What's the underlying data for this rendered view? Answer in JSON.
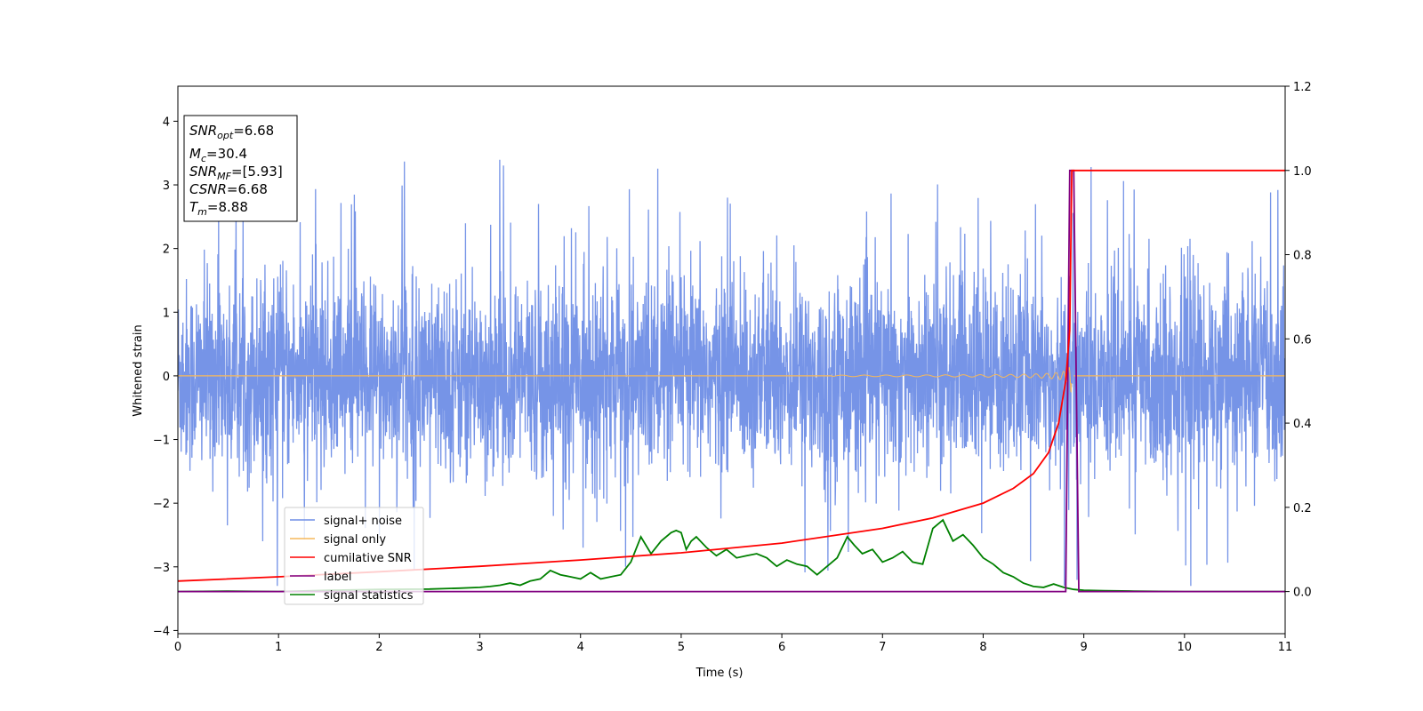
{
  "chart_data": {
    "type": "line",
    "xlabel": "Time (s)",
    "ylabel": "Whitened strain",
    "xlim": [
      0,
      11
    ],
    "ylim_left": [
      -4.05,
      4.55
    ],
    "ylim_right": [
      -0.1,
      1.2
    ],
    "x_ticks": [
      "0",
      "1",
      "2",
      "3",
      "4",
      "5",
      "6",
      "7",
      "8",
      "9",
      "10",
      "11"
    ],
    "y_left_ticks": [
      "−4",
      "−3",
      "−2",
      "−1",
      "0",
      "1",
      "2",
      "3",
      "4"
    ],
    "y_right_ticks": [
      "0.0",
      "0.2",
      "0.4",
      "0.6",
      "0.8",
      "1.0",
      "1.2"
    ],
    "grid": false,
    "legend_position": "lower-left",
    "info_box": {
      "snr_opt": {
        "sym": "SNR",
        "sub": "opt",
        "value": "=6.68"
      },
      "mc": {
        "sym": "M",
        "sub": "c",
        "value": "=30.4"
      },
      "snr_mf": {
        "sym": "SNR",
        "sub": "MF",
        "value": "=[5.93]"
      },
      "csnr": {
        "sym": "CSNR",
        "value": "=6.68"
      },
      "tm": {
        "sym": "T",
        "sub": "m",
        "value": "=8.88"
      }
    },
    "series": [
      {
        "name": "signal+ noise",
        "color": "#6f8ee6",
        "axis": "left",
        "description_amplitude": 1.1,
        "peak_max": 3.7,
        "peak_min": -3.3
      },
      {
        "name": "signal only",
        "color": "#f5b85c",
        "axis": "left",
        "merger_time": 8.88
      },
      {
        "name": "cumilative SNR",
        "color": "#ff0000",
        "axis": "right",
        "x": [
          0,
          1,
          2,
          3,
          4,
          5,
          6,
          7,
          7.5,
          8,
          8.3,
          8.5,
          8.65,
          8.75,
          8.82,
          8.86,
          8.88,
          8.9,
          11
        ],
        "y": [
          0.025,
          0.035,
          0.047,
          0.06,
          0.075,
          0.092,
          0.115,
          0.15,
          0.175,
          0.21,
          0.245,
          0.28,
          0.33,
          0.4,
          0.5,
          0.62,
          1.0,
          1.0,
          1.0
        ]
      },
      {
        "name": "label",
        "color": "#800080",
        "axis": "right",
        "x": [
          0,
          8.82,
          8.86,
          8.9,
          8.95,
          11
        ],
        "y": [
          0,
          0,
          1.0,
          1.0,
          0,
          0
        ]
      },
      {
        "name": "signal statistics",
        "color": "#008000",
        "axis": "right",
        "x": [
          0,
          0.5,
          1,
          1.5,
          2,
          2.5,
          2.8,
          3,
          3.1,
          3.2,
          3.3,
          3.4,
          3.5,
          3.6,
          3.7,
          3.8,
          3.9,
          4.0,
          4.1,
          4.2,
          4.3,
          4.4,
          4.5,
          4.6,
          4.7,
          4.8,
          4.9,
          4.95,
          5.0,
          5.05,
          5.1,
          5.15,
          5.25,
          5.35,
          5.45,
          5.55,
          5.65,
          5.75,
          5.85,
          5.95,
          6.05,
          6.15,
          6.25,
          6.35,
          6.45,
          6.55,
          6.65,
          6.72,
          6.8,
          6.9,
          7.0,
          7.1,
          7.2,
          7.3,
          7.4,
          7.5,
          7.6,
          7.7,
          7.8,
          7.9,
          8.0,
          8.1,
          8.2,
          8.3,
          8.4,
          8.5,
          8.6,
          8.7,
          8.8,
          8.9,
          9.0,
          9.2,
          9.5,
          10,
          11
        ],
        "y": [
          0,
          0.001,
          0,
          0.003,
          0.005,
          0.006,
          0.008,
          0.01,
          0.012,
          0.015,
          0.02,
          0.015,
          0.025,
          0.03,
          0.05,
          0.04,
          0.035,
          0.03,
          0.045,
          0.03,
          0.035,
          0.04,
          0.07,
          0.13,
          0.09,
          0.12,
          0.14,
          0.145,
          0.14,
          0.1,
          0.12,
          0.13,
          0.105,
          0.085,
          0.1,
          0.08,
          0.085,
          0.09,
          0.08,
          0.06,
          0.075,
          0.065,
          0.06,
          0.04,
          0.06,
          0.08,
          0.13,
          0.11,
          0.09,
          0.1,
          0.07,
          0.08,
          0.095,
          0.07,
          0.065,
          0.15,
          0.17,
          0.12,
          0.135,
          0.11,
          0.08,
          0.065,
          0.045,
          0.035,
          0.02,
          0.012,
          0.01,
          0.018,
          0.01,
          0.005,
          0.003,
          0.002,
          0.001,
          0,
          0
        ]
      }
    ]
  }
}
